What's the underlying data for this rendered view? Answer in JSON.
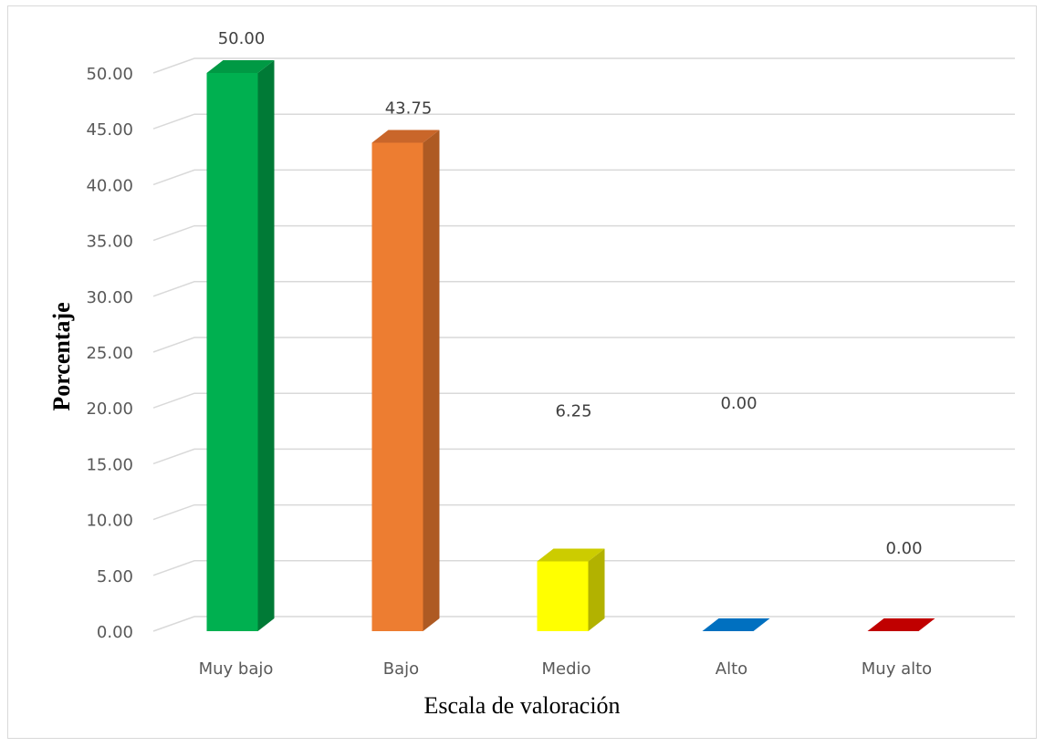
{
  "chart_data": {
    "type": "bar",
    "categories": [
      "Muy bajo",
      "Bajo",
      "Medio",
      "Alto",
      "Muy alto"
    ],
    "values": [
      50.0,
      43.75,
      6.25,
      0.0,
      0.0
    ],
    "value_labels": [
      "50.00",
      "43.75",
      "6.25",
      "0.00",
      "0.00"
    ],
    "colors": [
      "#00b050",
      "#ed7d31",
      "#ffff00",
      "#0070c0",
      "#c00000"
    ],
    "side_colors": [
      "#007a36",
      "#ae5a23",
      "#b2b200",
      "#005087",
      "#870000"
    ],
    "top_colors": [
      "#009944",
      "#c9662a",
      "#cccc00",
      "#0088b8",
      "#a80000"
    ],
    "yticks": [
      "0.00",
      "5.00",
      "10.00",
      "15.00",
      "20.00",
      "25.00",
      "30.00",
      "35.00",
      "40.00",
      "45.00",
      "50.00"
    ],
    "ylim": [
      0,
      50
    ],
    "xlabel": "Escala de valoración",
    "ylabel": "Porcentaje",
    "title": "",
    "grid": true,
    "legend": "none",
    "style": "3d-column"
  }
}
